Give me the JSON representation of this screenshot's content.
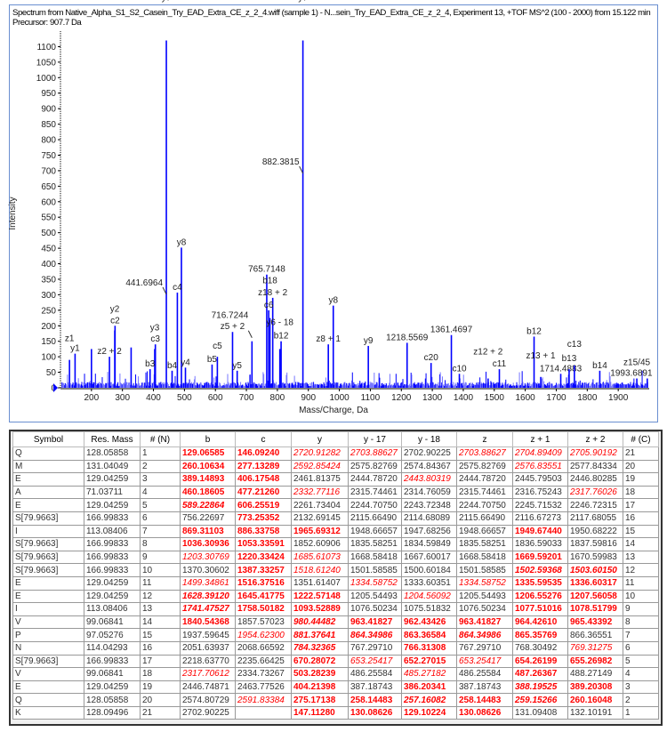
{
  "header": {
    "line1": "Spectrum from Native_Alpha_S1_S2_Casein_Try_EAD_Extra_CE_z_2_4.wiff (sample 1) - N...sein_Try_EAD_Extra_CE_z_2_4, Experiment 13, +TOF MS^2 (100 - 2000) from 15.122 min",
    "line2": "Precursor: 907.7 Da"
  },
  "chart_data": {
    "type": "bar",
    "xlabel": "Mass/Charge, Da",
    "ylabel": "Intensity",
    "xlim": [
      100,
      2000
    ],
    "ylim": [
      0,
      1150
    ],
    "xticks": [
      200,
      300,
      400,
      500,
      600,
      700,
      800,
      900,
      1000,
      1100,
      1200,
      1300,
      1400,
      1500,
      1600,
      1700,
      1800,
      1900
    ],
    "yticks": [
      0,
      50,
      100,
      150,
      200,
      250,
      300,
      350,
      400,
      450,
      500,
      550,
      600,
      650,
      700,
      750,
      800,
      850,
      900,
      950,
      1000,
      1050,
      1100
    ],
    "bar_color": "#0000ff",
    "peaks": [
      {
        "mz": 441.7,
        "i": 1120,
        "label": "y7"
      },
      {
        "mz": 882.4,
        "i": 1120,
        "label": "y7"
      },
      {
        "mz": 490.3,
        "i": 452,
        "label": "y8"
      },
      {
        "mz": 477.2,
        "i": 307,
        "label": "c4"
      },
      {
        "mz": 765.7,
        "i": 365,
        "label": "765.7148"
      },
      {
        "mz": 785.0,
        "i": 290,
        "label": "z18 + 2"
      },
      {
        "mz": 772.0,
        "i": 250,
        "label": "c6"
      },
      {
        "mz": 776.0,
        "i": 225,
        "label": "b18"
      },
      {
        "mz": 980.4,
        "i": 265,
        "label": "y8"
      },
      {
        "mz": 718.0,
        "i": 150,
        "label": ""
      },
      {
        "mz": 655.3,
        "i": 180,
        "label": "z5 + 2"
      },
      {
        "mz": 276.1,
        "i": 200,
        "label": "c2"
      },
      {
        "mz": 275.2,
        "i": 185,
        "label": "y2"
      },
      {
        "mz": 406.2,
        "i": 140,
        "label": "c3"
      },
      {
        "mz": 404.2,
        "i": 125,
        "label": "y3"
      },
      {
        "mz": 964.4,
        "i": 140,
        "label": "z8 + 1"
      },
      {
        "mz": 1093.5,
        "i": 135,
        "label": "y9"
      },
      {
        "mz": 1218.6,
        "i": 145,
        "label": "1218.5569"
      },
      {
        "mz": 1361.5,
        "i": 170,
        "label": "1361.4697"
      },
      {
        "mz": 1628.4,
        "i": 165,
        "label": "b12"
      },
      {
        "mz": 1516.4,
        "i": 60,
        "label": "c11"
      },
      {
        "mz": 1714.5,
        "i": 45,
        "label": "1714.4883"
      },
      {
        "mz": 1741.5,
        "i": 60,
        "label": "b13"
      },
      {
        "mz": 1758.5,
        "i": 72,
        "label": "c13"
      },
      {
        "mz": 1840.5,
        "i": 55,
        "label": "b14"
      },
      {
        "mz": 1993.7,
        "i": 30,
        "label": "1993.6891"
      },
      {
        "mz": 812.0,
        "i": 150,
        "label": "b12"
      },
      {
        "mz": 808.0,
        "i": 125,
        "label": "y6 - 18"
      },
      {
        "mz": 1296.0,
        "i": 80,
        "label": "c20"
      },
      {
        "mz": 1387.3,
        "i": 45,
        "label": "c10"
      },
      {
        "mz": 589.2,
        "i": 75,
        "label": "b5"
      },
      {
        "mz": 606.3,
        "i": 100,
        "label": "c5"
      },
      {
        "mz": 460.2,
        "i": 55,
        "label": "b4"
      },
      {
        "mz": 389.1,
        "i": 60,
        "label": "b3"
      },
      {
        "mz": 147.1,
        "i": 110,
        "label": "y1"
      },
      {
        "mz": 129.1,
        "i": 90,
        "label": "z1"
      },
      {
        "mz": 200.0,
        "i": 125,
        "label": ""
      },
      {
        "mz": 328.0,
        "i": 130,
        "label": ""
      },
      {
        "mz": 258.1,
        "i": 100,
        "label": "z2 + 2"
      },
      {
        "mz": 503.3,
        "i": 65,
        "label": "y4"
      },
      {
        "mz": 670.3,
        "i": 55,
        "label": "y5"
      },
      {
        "mz": 1480.0,
        "i": 30,
        "label": "z12 + 2"
      },
      {
        "mz": 1650.0,
        "i": 35,
        "label": "z13 + 1"
      },
      {
        "mz": 1960.0,
        "i": 30,
        "label": "z15/45"
      }
    ],
    "annotations": [
      {
        "text": "441.6964",
        "mz": 441.7,
        "i": 330
      },
      {
        "text": "882.3815",
        "mz": 882.4,
        "i": 720
      },
      {
        "text": "716.7244",
        "mz": 718.0,
        "i": 190
      }
    ]
  },
  "table": {
    "headers": [
      "Symbol",
      "Res. Mass",
      "# (N)",
      "b",
      "c",
      "y",
      "y - 17",
      "y - 18",
      "z",
      "z + 1",
      "z + 2",
      "# (C)"
    ],
    "rows": [
      [
        "Q",
        "128.05858",
        "1",
        "129.06585",
        "146.09240",
        "2720.91282",
        "2703.88627",
        "2702.90225",
        "2703.88627",
        "2704.89409",
        "2705.90192",
        "21"
      ],
      [
        "M",
        "131.04049",
        "2",
        "260.10634",
        "277.13289",
        "2592.85424",
        "2575.82769",
        "2574.84367",
        "2575.82769",
        "2576.83551",
        "2577.84334",
        "20"
      ],
      [
        "E",
        "129.04259",
        "3",
        "389.14893",
        "406.17548",
        "2461.81375",
        "2444.78720",
        "2443.80319",
        "2444.78720",
        "2445.79503",
        "2446.80285",
        "19"
      ],
      [
        "A",
        "71.03711",
        "4",
        "460.18605",
        "477.21260",
        "2332.77116",
        "2315.74461",
        "2314.76059",
        "2315.74461",
        "2316.75243",
        "2317.76026",
        "18"
      ],
      [
        "E",
        "129.04259",
        "5",
        "589.22864",
        "606.25519",
        "2261.73404",
        "2244.70750",
        "2243.72348",
        "2244.70750",
        "2245.71532",
        "2246.72315",
        "17"
      ],
      [
        "S[79.9663]",
        "166.99833",
        "6",
        "756.22697",
        "773.25352",
        "2132.69145",
        "2115.66490",
        "2114.68089",
        "2115.66490",
        "2116.67273",
        "2117.68055",
        "16"
      ],
      [
        "I",
        "113.08406",
        "7",
        "869.31103",
        "886.33758",
        "1965.69312",
        "1948.66657",
        "1947.68256",
        "1948.66657",
        "1949.67440",
        "1950.68222",
        "15"
      ],
      [
        "S[79.9663]",
        "166.99833",
        "8",
        "1036.30936",
        "1053.33591",
        "1852.60906",
        "1835.58251",
        "1834.59849",
        "1835.58251",
        "1836.59033",
        "1837.59816",
        "14"
      ],
      [
        "S[79.9663]",
        "166.99833",
        "9",
        "1203.30769",
        "1220.33424",
        "1685.61073",
        "1668.58418",
        "1667.60017",
        "1668.58418",
        "1669.59201",
        "1670.59983",
        "13"
      ],
      [
        "S[79.9663]",
        "166.99833",
        "10",
        "1370.30602",
        "1387.33257",
        "1518.61240",
        "1501.58585",
        "1500.60184",
        "1501.58585",
        "1502.59368",
        "1503.60150",
        "12"
      ],
      [
        "E",
        "129.04259",
        "11",
        "1499.34861",
        "1516.37516",
        "1351.61407",
        "1334.58752",
        "1333.60351",
        "1334.58752",
        "1335.59535",
        "1336.60317",
        "11"
      ],
      [
        "E",
        "129.04259",
        "12",
        "1628.39120",
        "1645.41775",
        "1222.57148",
        "1205.54493",
        "1204.56092",
        "1205.54493",
        "1206.55276",
        "1207.56058",
        "10"
      ],
      [
        "I",
        "113.08406",
        "13",
        "1741.47527",
        "1758.50182",
        "1093.52889",
        "1076.50234",
        "1075.51832",
        "1076.50234",
        "1077.51016",
        "1078.51799",
        "9"
      ],
      [
        "V",
        "99.06841",
        "14",
        "1840.54368",
        "1857.57023",
        "980.44482",
        "963.41827",
        "962.43426",
        "963.41827",
        "964.42610",
        "965.43392",
        "8"
      ],
      [
        "P",
        "97.05276",
        "15",
        "1937.59645",
        "1954.62300",
        "881.37641",
        "864.34986",
        "863.36584",
        "864.34986",
        "865.35769",
        "866.36551",
        "7"
      ],
      [
        "N",
        "114.04293",
        "16",
        "2051.63937",
        "2068.66592",
        "784.32365",
        "767.29710",
        "766.31308",
        "767.29710",
        "768.30492",
        "769.31275",
        "6"
      ],
      [
        "S[79.9663]",
        "166.99833",
        "17",
        "2218.63770",
        "2235.66425",
        "670.28072",
        "653.25417",
        "652.27015",
        "653.25417",
        "654.26199",
        "655.26982",
        "5"
      ],
      [
        "V",
        "99.06841",
        "18",
        "2317.70612",
        "2334.73267",
        "503.28239",
        "486.25584",
        "485.27182",
        "486.25584",
        "487.26367",
        "488.27149",
        "4"
      ],
      [
        "E",
        "129.04259",
        "19",
        "2446.74871",
        "2463.77526",
        "404.21398",
        "387.18743",
        "386.20341",
        "387.18743",
        "388.19525",
        "389.20308",
        "3"
      ],
      [
        "Q",
        "128.05858",
        "20",
        "2574.80729",
        "2591.83384",
        "275.17138",
        "258.14483",
        "257.16082",
        "258.14483",
        "259.15266",
        "260.16048",
        "2"
      ],
      [
        "K",
        "128.09496",
        "21",
        "2702.90225",
        "",
        "147.11280",
        "130.08626",
        "129.10224",
        "130.08626",
        "131.09408",
        "132.10191",
        "1"
      ]
    ],
    "styles": [
      [
        "b",
        "b",
        "i",
        "i",
        "n",
        "i",
        "i",
        "i"
      ],
      [
        "b",
        "b",
        "i",
        "n",
        "n",
        "n",
        "i",
        "n"
      ],
      [
        "b",
        "b",
        "n",
        "n",
        "i",
        "n",
        "n",
        "n"
      ],
      [
        "b",
        "b",
        "i",
        "n",
        "n",
        "n",
        "n",
        "i"
      ],
      [
        "bi",
        "b",
        "n",
        "n",
        "n",
        "n",
        "n",
        "n"
      ],
      [
        "n",
        "b",
        "n",
        "n",
        "n",
        "n",
        "n",
        "n"
      ],
      [
        "b",
        "b",
        "b",
        "n",
        "n",
        "n",
        "b",
        "n"
      ],
      [
        "b",
        "b",
        "n",
        "n",
        "n",
        "n",
        "n",
        "n"
      ],
      [
        "i",
        "b",
        "i",
        "n",
        "n",
        "n",
        "b",
        "n"
      ],
      [
        "n",
        "b",
        "i",
        "n",
        "n",
        "n",
        "bi",
        "bi"
      ],
      [
        "i",
        "b",
        "n",
        "i",
        "n",
        "i",
        "b",
        "b"
      ],
      [
        "bi",
        "b",
        "b",
        "n",
        "i",
        "n",
        "b",
        "b"
      ],
      [
        "bi",
        "b",
        "b",
        "n",
        "n",
        "n",
        "b",
        "b"
      ],
      [
        "b",
        "n",
        "bi",
        "b",
        "b",
        "b",
        "b",
        "b"
      ],
      [
        "n",
        "i",
        "bi",
        "bi",
        "b",
        "bi",
        "b",
        "n"
      ],
      [
        "n",
        "n",
        "bi",
        "n",
        "b",
        "n",
        "n",
        "i"
      ],
      [
        "n",
        "n",
        "b",
        "i",
        "b",
        "i",
        "b",
        "b"
      ],
      [
        "i",
        "n",
        "b",
        "n",
        "i",
        "n",
        "b",
        "n"
      ],
      [
        "n",
        "n",
        "b",
        "n",
        "b",
        "n",
        "bi",
        "b"
      ],
      [
        "n",
        "i",
        "b",
        "b",
        "bi",
        "b",
        "bi",
        "b"
      ],
      [
        "n",
        "n",
        "b",
        "b",
        "b",
        "b",
        "n",
        "n"
      ]
    ],
    "highlight_color": "#ff0000"
  }
}
